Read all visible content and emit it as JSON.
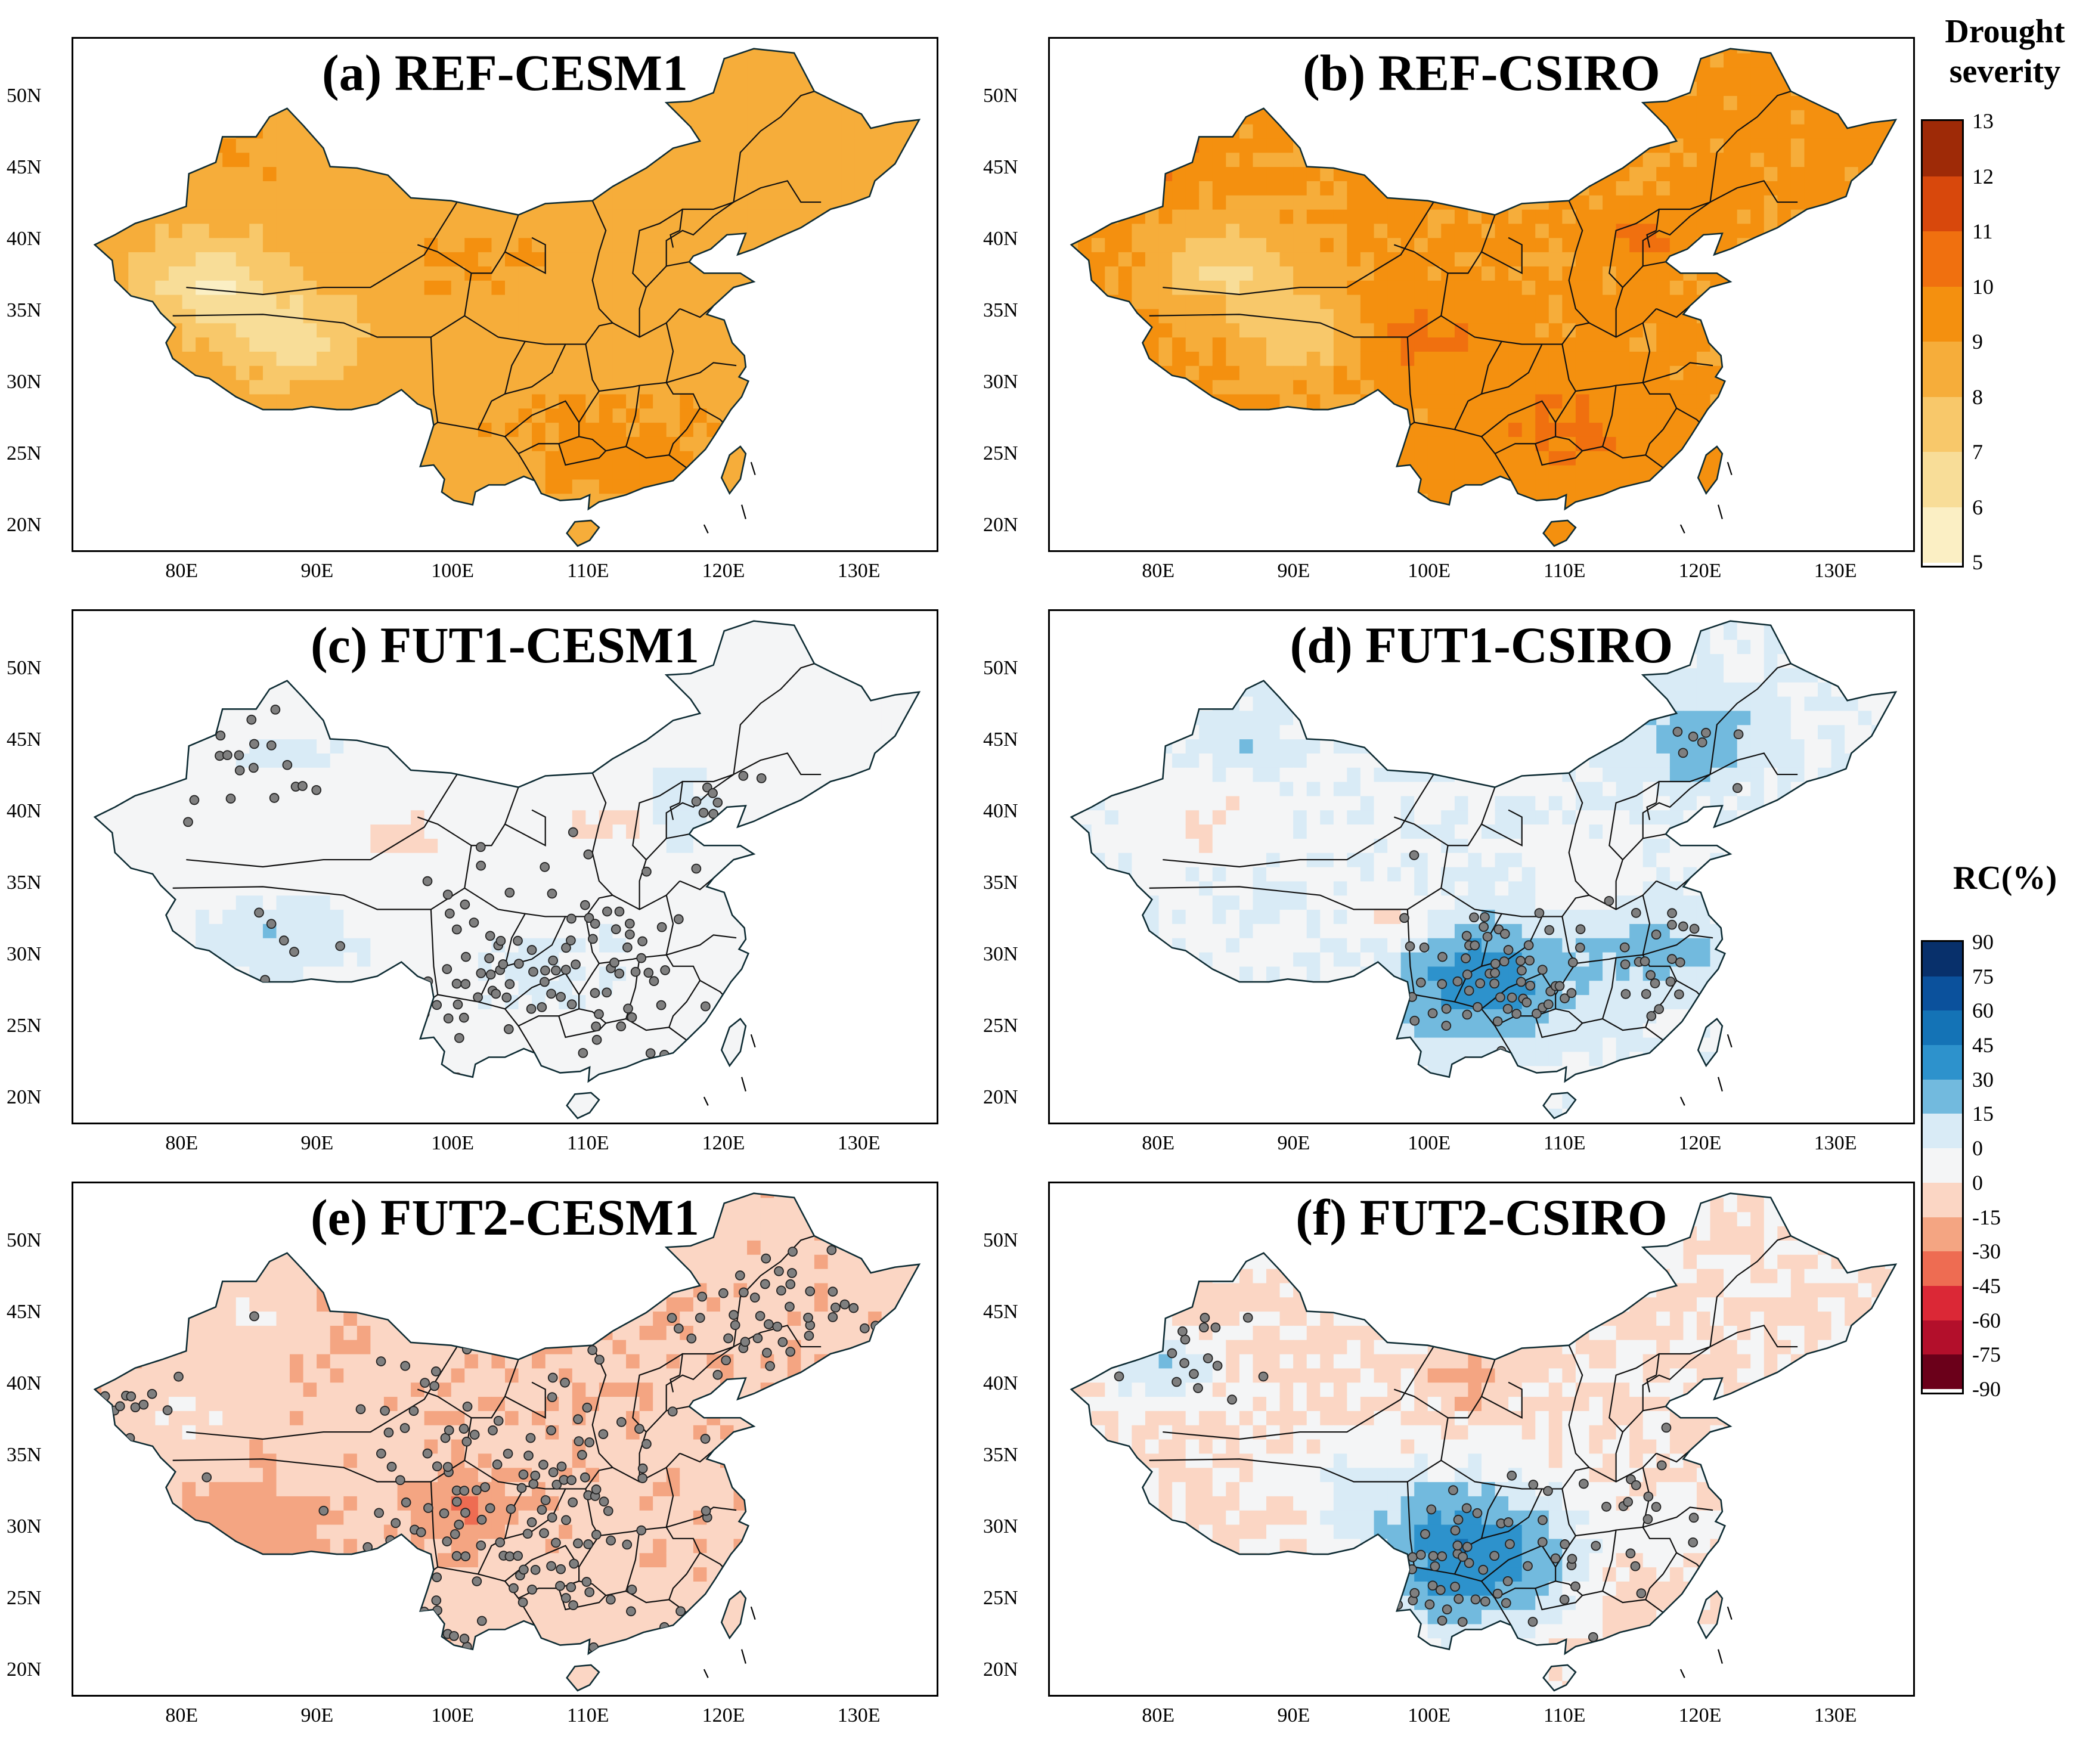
{
  "panels": [
    {
      "id": "a",
      "title": "(a) REF-CESM1",
      "field": "severity",
      "scenario": "ref_cesm1",
      "has_points": false
    },
    {
      "id": "b",
      "title": "(b) REF-CSIRO",
      "field": "severity",
      "scenario": "ref_csiro",
      "has_points": false
    },
    {
      "id": "c",
      "title": "(c) FUT1-CESM1",
      "field": "rc",
      "scenario": "fut1_cesm1",
      "has_points": true
    },
    {
      "id": "d",
      "title": "(d) FUT1-CSIRO",
      "field": "rc",
      "scenario": "fut1_csiro",
      "has_points": true
    },
    {
      "id": "e",
      "title": "(e) FUT2-CESM1",
      "field": "rc",
      "scenario": "fut2_cesm1",
      "has_points": true
    },
    {
      "id": "f",
      "title": "(f) FUT2-CSIRO",
      "field": "rc",
      "scenario": "fut2_csiro",
      "has_points": true
    }
  ],
  "axes": {
    "lat_labels": [
      "50N",
      "45N",
      "40N",
      "35N",
      "30N",
      "25N",
      "20N"
    ],
    "lat_values": [
      50,
      45,
      40,
      35,
      30,
      25,
      20
    ],
    "lon_labels": [
      "80E",
      "90E",
      "100E",
      "110E",
      "120E",
      "130E"
    ],
    "lon_values": [
      80,
      90,
      100,
      110,
      120,
      130
    ],
    "lon_range": [
      72,
      136
    ],
    "lat_range": [
      18,
      54
    ]
  },
  "legend_severity": {
    "title": "Drought severity",
    "ticks": [
      "13",
      "12",
      "11",
      "10",
      "9",
      "8",
      "7",
      "6",
      "5"
    ],
    "colors": [
      "#9e2a07",
      "#d8480c",
      "#f0700f",
      "#f4900f",
      "#f6ad3a",
      "#f8c86a",
      "#f8dd98",
      "#fbefc4"
    ]
  },
  "legend_rc": {
    "title": "RC(%)",
    "ticks": [
      "90",
      "75",
      "60",
      "45",
      "30",
      "15",
      "0",
      "0",
      "-15",
      "-30",
      "-45",
      "-60",
      "-75",
      "-90"
    ],
    "colors": [
      "#08306b",
      "#0b519c",
      "#1473b6",
      "#2d92cc",
      "#72bade",
      "#d9ebf6",
      "#f4f5f6",
      "#fbd6c4",
      "#f4a582",
      "#ee6c52",
      "#db2836",
      "#b30f2b",
      "#6b001a"
    ]
  },
  "stations_note": ""
}
